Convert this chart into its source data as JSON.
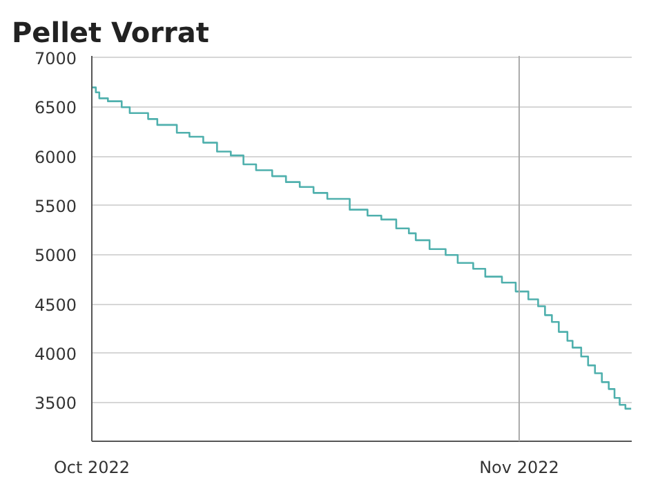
{
  "chart_data": {
    "type": "step",
    "title": "Pellet Vorrat",
    "x": [
      "2022-10-01T00:00",
      "2022-10-01T07:00",
      "2022-10-01T13:00",
      "2022-10-02T04:00",
      "2022-10-03T04:00",
      "2022-10-03T18:00",
      "2022-10-05T02:00",
      "2022-10-05T18:00",
      "2022-10-07T04:00",
      "2022-10-08T02:00",
      "2022-10-09T02:00",
      "2022-10-10T02:00",
      "2022-10-11T02:00",
      "2022-10-12T00:00",
      "2022-10-12T22:00",
      "2022-10-14T02:00",
      "2022-10-15T02:00",
      "2022-10-16T02:00",
      "2022-10-17T02:00",
      "2022-10-18T02:00",
      "2022-10-19T17:00",
      "2022-10-21T00:00",
      "2022-10-22T00:00",
      "2022-10-23T02:00",
      "2022-10-24T00:00",
      "2022-10-24T12:00",
      "2022-10-25T12:00",
      "2022-10-26T16:00",
      "2022-10-27T13:00",
      "2022-10-28T16:00",
      "2022-10-29T13:00",
      "2022-10-30T18:00",
      "2022-10-31T18:00",
      "2022-11-01T16:00",
      "2022-11-02T09:00",
      "2022-11-02T21:00",
      "2022-11-03T09:00",
      "2022-11-03T21:00",
      "2022-11-04T12:00",
      "2022-11-04T21:00",
      "2022-11-05T12:00",
      "2022-11-06T00:00",
      "2022-11-06T12:00",
      "2022-11-07T00:00",
      "2022-11-07T12:00",
      "2022-11-07T22:00",
      "2022-11-08T07:00",
      "2022-11-08T17:00",
      "2022-11-09T03:00"
    ],
    "series": [
      {
        "color": "#4fb0ad",
        "values": [
          6700,
          6650,
          6590,
          6560,
          6500,
          6440,
          6380,
          6320,
          6240,
          6200,
          6140,
          6050,
          6010,
          5920,
          5860,
          5800,
          5740,
          5690,
          5630,
          5570,
          5460,
          5400,
          5360,
          5270,
          5220,
          5150,
          5060,
          5000,
          4920,
          4860,
          4780,
          4720,
          4630,
          4550,
          4480,
          4390,
          4320,
          4220,
          4130,
          4060,
          3970,
          3880,
          3800,
          3710,
          3640,
          3550,
          3480,
          3440,
          3440
        ]
      }
    ],
    "xlim": [
      "2022-10-01T00:00",
      "2022-11-09T04:00"
    ],
    "xticks": [
      {
        "value": "2022-10-01",
        "label": "Oct 2022"
      },
      {
        "value": "2022-11-01",
        "label": "Nov 2022"
      }
    ],
    "ylim": [
      3110,
      7020
    ],
    "yticks": [
      3500,
      4000,
      4500,
      5000,
      5500,
      6000,
      6500,
      7000
    ],
    "grid": "y",
    "ref_lines": [
      {
        "axis": "x",
        "value": "2022-11-01",
        "color": "#aaaaaa"
      }
    ]
  }
}
